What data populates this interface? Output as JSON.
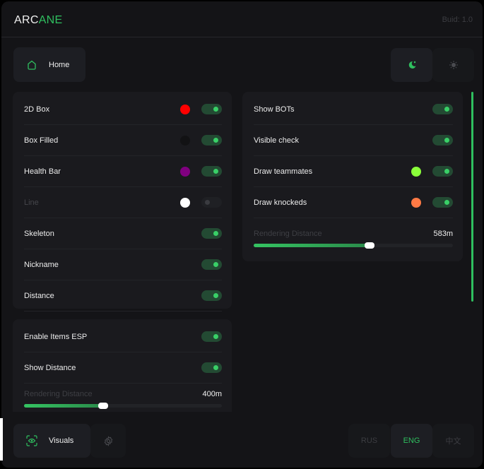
{
  "header": {
    "title_a": "ARC",
    "title_b": "ANE",
    "build": "Buid: 1.0"
  },
  "nav": {
    "home": "Home",
    "home_icon": "home-icon",
    "theme": [
      {
        "icon": "moon-icon",
        "active": true
      },
      {
        "icon": "sun-icon",
        "active": false
      }
    ]
  },
  "players": {
    "rows": [
      {
        "label": "2D Box",
        "color": "#ff0000",
        "enabled": true,
        "disabled": false
      },
      {
        "label": "Box Filled",
        "color": "#121214",
        "enabled": true,
        "disabled": false
      },
      {
        "label": "Health Bar",
        "color": "#800080",
        "enabled": true,
        "disabled": false
      },
      {
        "label": "Line",
        "color": "#ffffff",
        "enabled": false,
        "disabled": true
      },
      {
        "label": "Skeleton",
        "enabled": true,
        "disabled": false
      },
      {
        "label": "Nickname",
        "enabled": true,
        "disabled": false
      },
      {
        "label": "Distance",
        "enabled": true,
        "disabled": false
      }
    ]
  },
  "items": {
    "rows": [
      {
        "label": "Enable Items ESP",
        "enabled": true
      },
      {
        "label": "Show Distance",
        "enabled": true
      }
    ],
    "slider": {
      "label": "Rendering Distance",
      "value": "400m",
      "fraction": 0.4
    }
  },
  "other": {
    "rows": [
      {
        "label": "Show BOTs",
        "enabled": true
      },
      {
        "label": "Visible check",
        "enabled": true
      },
      {
        "label": "Draw teammates",
        "color": "#8aff3a",
        "enabled": true
      },
      {
        "label": "Draw knockeds",
        "color": "#ff7a45",
        "enabled": true
      }
    ],
    "slider": {
      "label": "Rendering Distance",
      "value": "583m",
      "fraction": 0.583
    }
  },
  "footer": {
    "visuals": "Visuals",
    "languages": [
      "RUS",
      "ENG",
      "中文"
    ],
    "active_language": "ENG"
  },
  "colors": {
    "accent": "#2fbf5f",
    "background": "#141417",
    "panel": "#1a1a1e"
  }
}
